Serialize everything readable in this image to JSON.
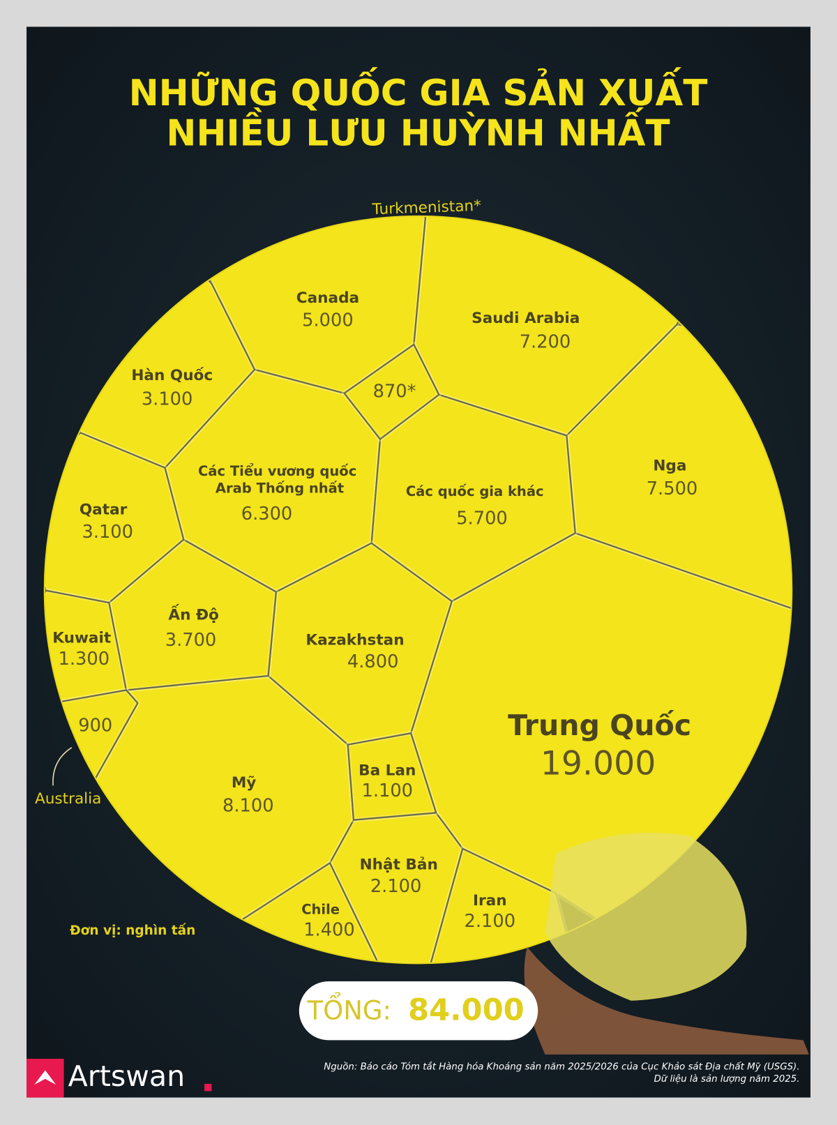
{
  "chart_data": {
    "type": "voronoi",
    "title": [
      "NHỮNG QUỐC GIA SẢN XUẤT",
      "NHIỀU LƯU HUỲNH NHẤT"
    ],
    "categories": [
      "Trung Quốc",
      "Mỹ",
      "Nga",
      "Saudi Arabia",
      "Các Tiểu vương quốc Arab Thống nhất",
      "Các quốc gia khác",
      "Canada",
      "Kazakhstan",
      "Ấn Độ",
      "Hàn Quốc",
      "Qatar",
      "Nhật Bản",
      "Iran",
      "Chile",
      "Kuwait",
      "Ba Lan",
      "Australia",
      "Turkmenistan*"
    ],
    "values": [
      19000,
      8100,
      7500,
      7200,
      6300,
      5700,
      5000,
      4800,
      3700,
      3100,
      3100,
      2100,
      2100,
      1400,
      1300,
      1100,
      900,
      870
    ],
    "value_labels": [
      "19.000",
      "8.100",
      "7.500",
      "7.200",
      "6.300",
      "5.700",
      "5.000",
      "4.800",
      "3.700",
      "3.100",
      "3.100",
      "2.100",
      "2.100",
      "1.400",
      "1.300",
      "1.100",
      "900",
      "870*"
    ],
    "color": "#f3e41c",
    "unit_note": "Đơn vị: nghìn tấn",
    "total_label": "TỔNG:",
    "total": 84000,
    "total_value_label": "84.000",
    "source": [
      "Nguồn: Báo cáo Tóm tắt Hàng hóa Khoáng sản năm 2025/2026 của Cục Khảo sát Địa chất Mỹ (USGS).",
      "Dữ liệu là sản lượng năm 2025."
    ],
    "brand": "Artswan"
  }
}
